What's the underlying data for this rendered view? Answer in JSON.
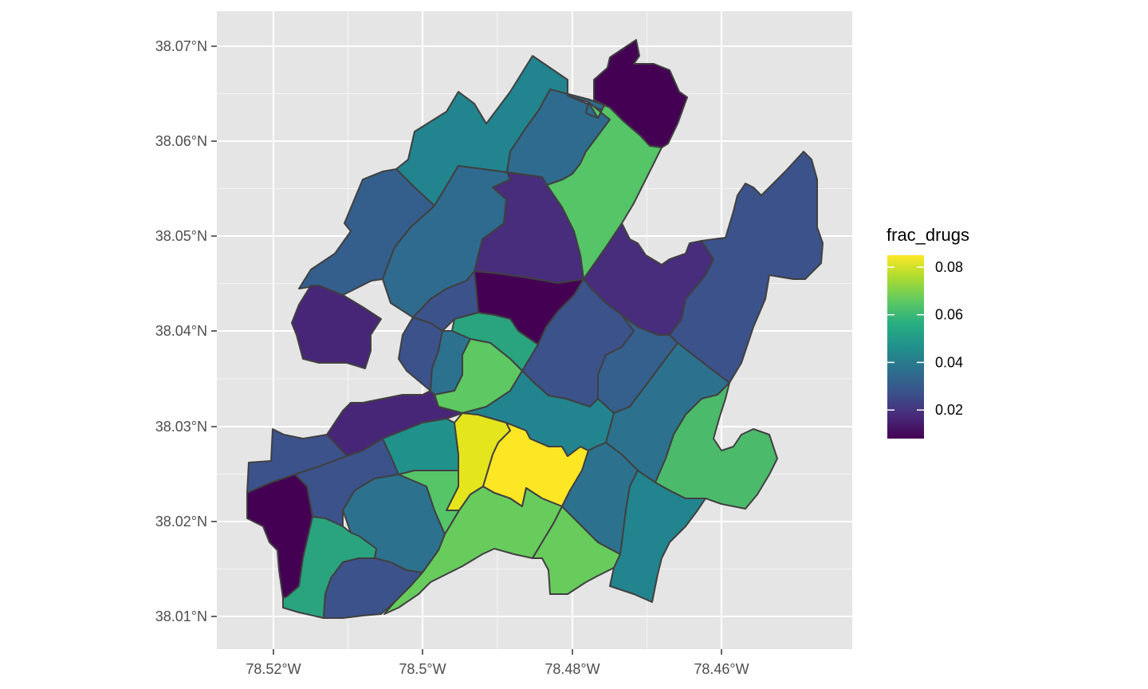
{
  "chart_data": {
    "type": "choropleth-map",
    "fill_variable": "frac_drugs",
    "x_ticks": [
      "78.52°W",
      "78.5°W",
      "78.48°W",
      "78.46°W"
    ],
    "y_ticks": [
      "38.07°N",
      "38.06°N",
      "38.05°N",
      "38.04°N",
      "38.03°N",
      "38.02°N",
      "38.01°N"
    ],
    "legend": {
      "title": "frac_drugs",
      "placement": "right",
      "breaks": [
        "0.08",
        "0.06",
        "0.04",
        "0.02"
      ],
      "range": [
        0.008,
        0.085
      ],
      "palette": "viridis"
    },
    "background": "#e5e5e5",
    "grid_color": "#ffffff",
    "border_color": "#404040"
  }
}
